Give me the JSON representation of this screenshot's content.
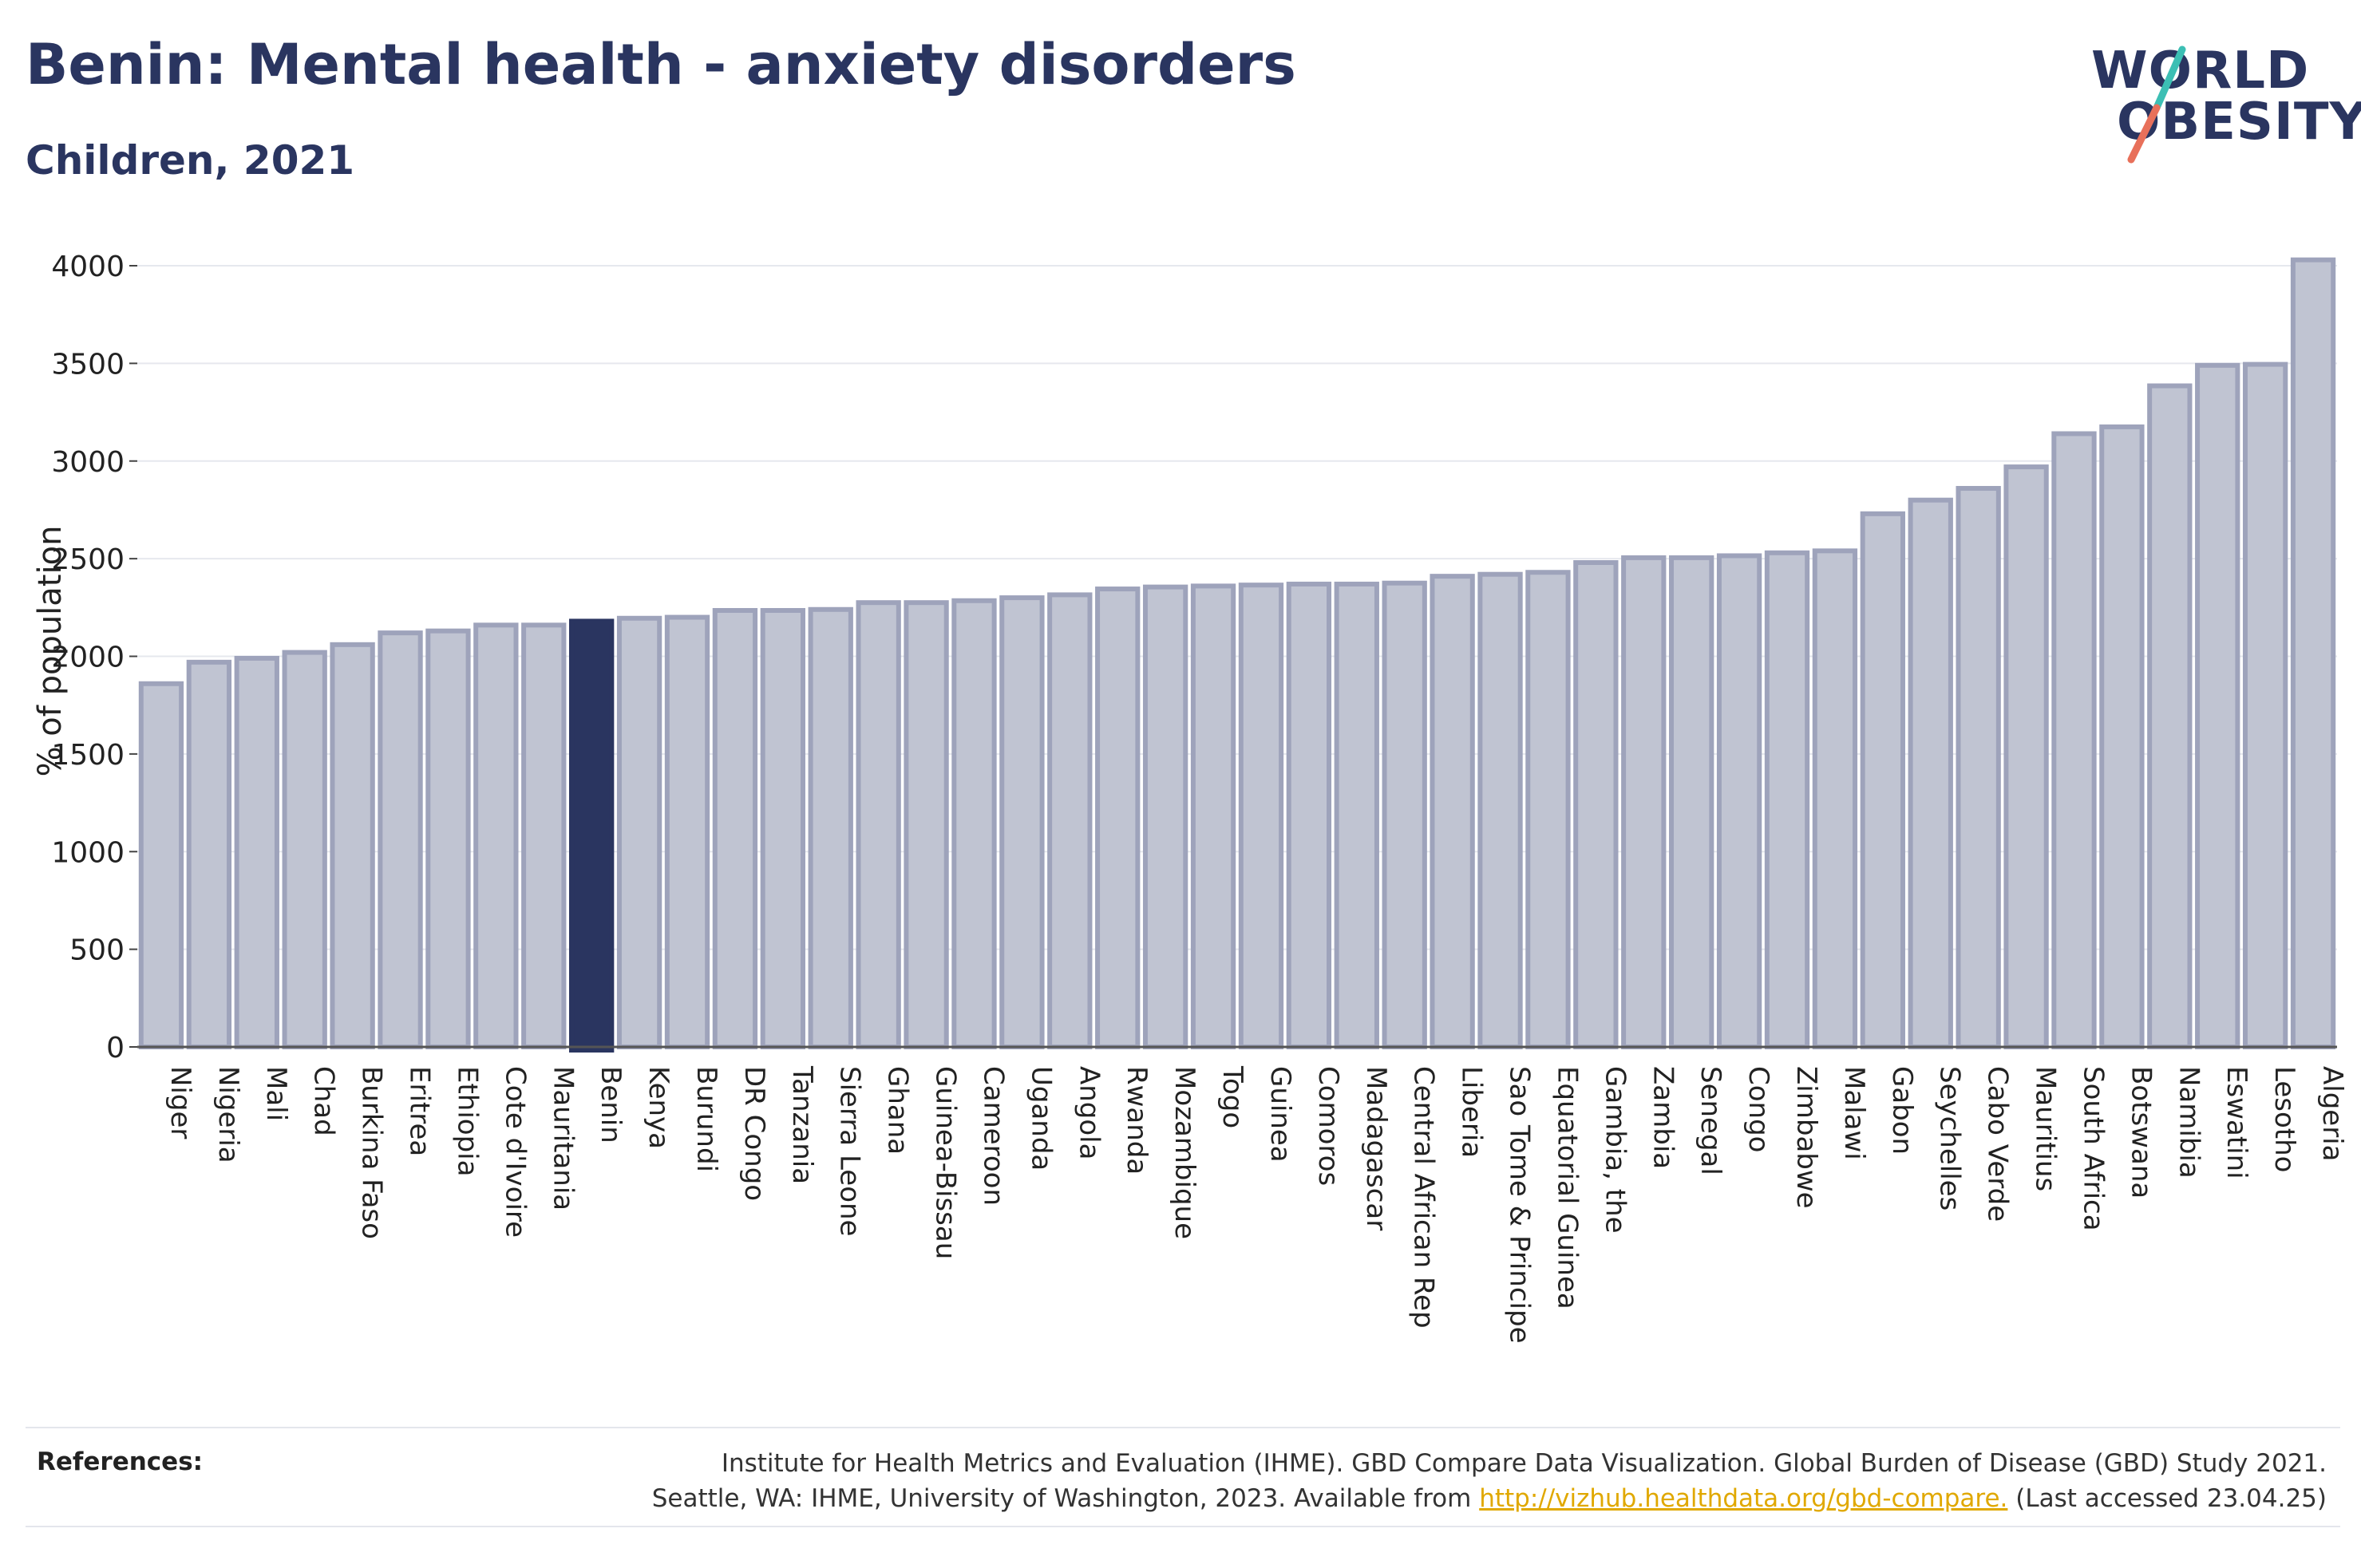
{
  "title": "Benin: Mental health - anxiety disorders",
  "subtitle": "Children, 2021",
  "logo": {
    "line1": "WORLD",
    "line2": "OBESITY",
    "colors": {
      "text": "#2a3560",
      "slash_top": "#3cbfb4",
      "slash_bottom": "#e8705a"
    }
  },
  "references": {
    "label": "References:",
    "line1": "Institute for Health Metrics and Evaluation (IHME). GBD Compare Data Visualization. Global Burden of Disease (GBD) Study 2021.",
    "line2_pre": "Seattle, WA: IHME, University of Washington, 2023. Available from ",
    "link": "http://vizhub.healthdata.org/gbd-compare.",
    "line2_post": " (Last accessed 23.04.25)"
  },
  "chart_data": {
    "type": "bar",
    "ylabel": "% of population",
    "ylim": [
      0,
      4100
    ],
    "yticks": [
      0,
      500,
      1000,
      1500,
      2000,
      2500,
      3000,
      3500,
      4000
    ],
    "grid": true,
    "highlight": "Benin",
    "colors": {
      "bar": "#c0c4d2",
      "bar_edge": "#9ea3bb",
      "highlight": "#2a3560"
    },
    "categories": [
      "Niger",
      "Nigeria",
      "Mali",
      "Chad",
      "Burkina Faso",
      "Eritrea",
      "Ethiopia",
      "Cote d'Ivoire",
      "Mauritania",
      "Benin",
      "Kenya",
      "Burundi",
      "DR Congo",
      "Tanzania",
      "Sierra Leone",
      "Ghana",
      "Guinea-Bissau",
      "Cameroon",
      "Uganda",
      "Angola",
      "Rwanda",
      "Mozambique",
      "Togo",
      "Guinea",
      "Comoros",
      "Madagascar",
      "Central African Rep",
      "Liberia",
      "Sao Tome & Principe",
      "Equatorial Guinea",
      "Gambia, the",
      "Zambia",
      "Senegal",
      "Congo",
      "Zimbabwe",
      "Malawi",
      "Gabon",
      "Seychelles",
      "Cabo Verde",
      "Mauritius",
      "South Africa",
      "Botswana",
      "Namibia",
      "Eswatini",
      "Lesotho",
      "Algeria"
    ],
    "values": [
      1860,
      1970,
      1990,
      2020,
      2060,
      2120,
      2130,
      2160,
      2160,
      2180,
      2195,
      2200,
      2235,
      2235,
      2240,
      2275,
      2275,
      2285,
      2300,
      2315,
      2345,
      2355,
      2360,
      2365,
      2370,
      2370,
      2375,
      2410,
      2420,
      2430,
      2480,
      2505,
      2505,
      2515,
      2530,
      2540,
      2730,
      2800,
      2860,
      2970,
      3140,
      3175,
      3385,
      3490,
      3495,
      4030
    ]
  }
}
